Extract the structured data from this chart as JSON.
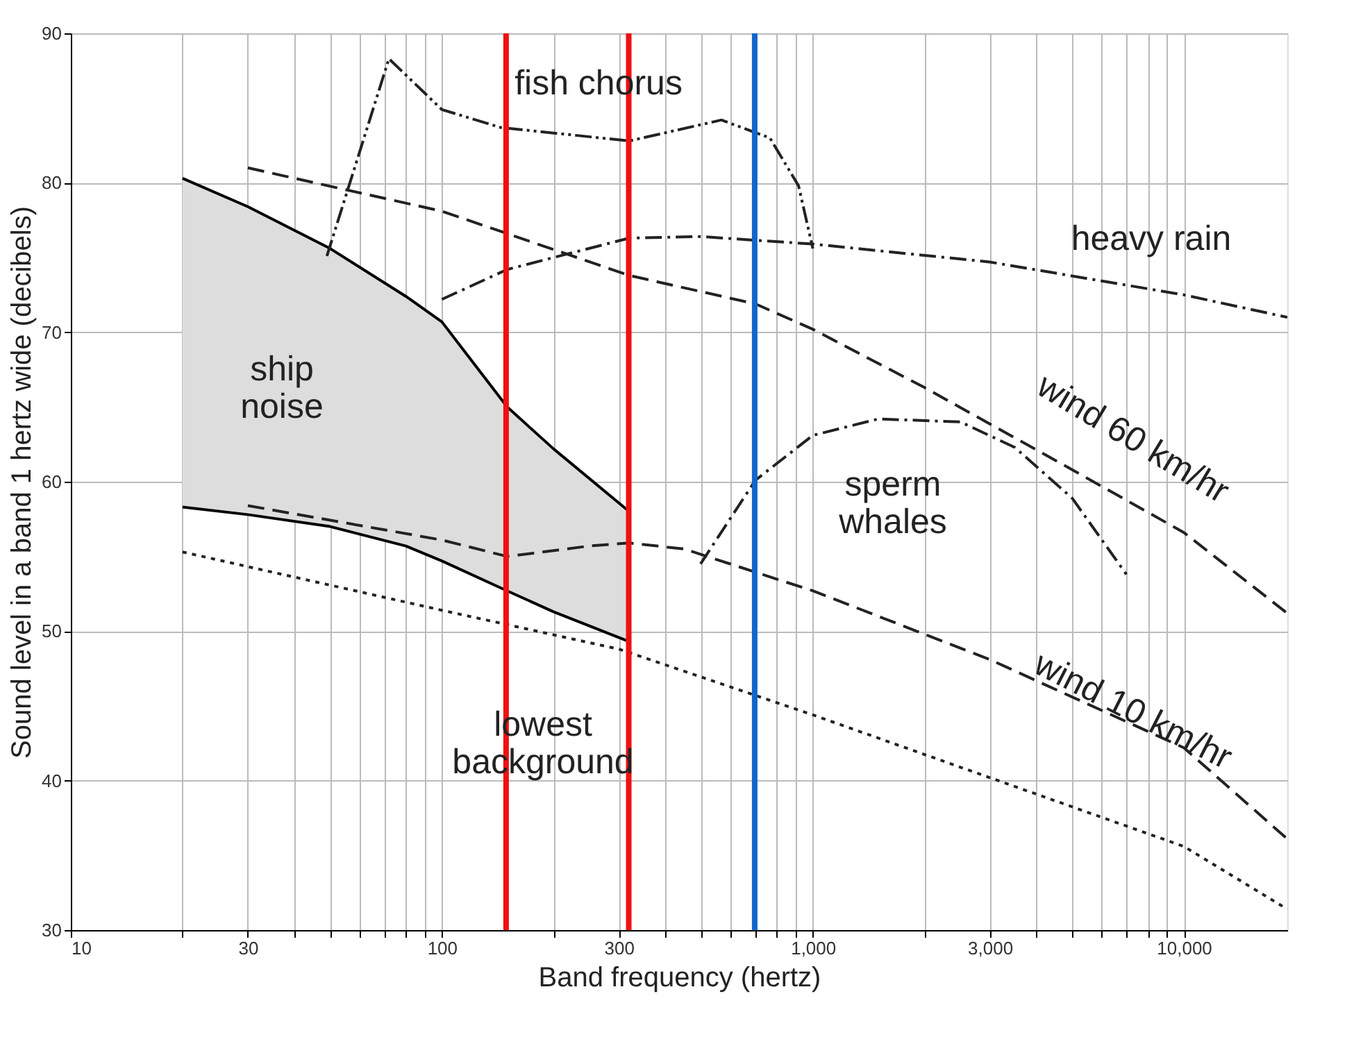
{
  "chart_data": {
    "type": "line",
    "xlabel": "Band frequency (hertz)",
    "ylabel": "Sound level in a band 1 hertz wide (decibels)",
    "log": "x",
    "grid": true,
    "xlim": [
      10,
      19000
    ],
    "ylim": [
      30,
      90
    ],
    "xticks": [
      10,
      {
        "value": 20,
        "label": null
      },
      30,
      {
        "value": 40,
        "label": null
      },
      {
        "value": 50,
        "label": null
      },
      {
        "value": 60,
        "label": null
      },
      {
        "value": 70,
        "label": null
      },
      {
        "value": 80,
        "label": null
      },
      {
        "value": 90,
        "label": null
      },
      100,
      {
        "value": 200,
        "label": null
      },
      300,
      {
        "value": 400,
        "label": null
      },
      {
        "value": 500,
        "label": null
      },
      {
        "value": 600,
        "label": null
      },
      {
        "value": 700,
        "label": null
      },
      {
        "value": 800,
        "label": null
      },
      {
        "value": 900,
        "label": null
      },
      {
        "value": 1000,
        "label": "1,000"
      },
      {
        "value": 2000,
        "label": null
      },
      {
        "value": 3000,
        "label": "3,000"
      },
      {
        "value": 4000,
        "label": null
      },
      {
        "value": 5000,
        "label": null
      },
      {
        "value": 6000,
        "label": null
      },
      {
        "value": 7000,
        "label": null
      },
      {
        "value": 8000,
        "label": null
      },
      {
        "value": 9000,
        "label": null
      },
      {
        "value": 10000,
        "label": "10,000"
      }
    ],
    "yticks": [
      30,
      40,
      50,
      60,
      70,
      80,
      90
    ],
    "series": [
      {
        "name": "ship\nnoise",
        "type": "area",
        "color": "#dddddd",
        "x": [
          20,
          30,
          50,
          80,
          100,
          150,
          200,
          320
        ],
        "values": [
          80.3,
          78.4,
          75.6,
          72.4,
          70.7,
          65,
          62.2,
          58
        ]
      },
      {
        "color": "#000000",
        "line_style": "solid",
        "x": [
          20,
          30,
          50,
          80,
          100,
          150,
          200,
          320
        ],
        "values": [
          58.3,
          57.8,
          57,
          55.7,
          54.7,
          52.7,
          51.3,
          49.3
        ]
      },
      {
        "name": "fish chorus",
        "color": "#222222",
        "line_style": "dashdotdot",
        "x": [
          49,
          72,
          100,
          144,
          320,
          567,
          766,
          915,
          1000
        ],
        "values": [
          75.1,
          88.3,
          84.9,
          83.7,
          82.8,
          84.2,
          83,
          79.8,
          75.6
        ]
      },
      {
        "name": "heavy rain",
        "color": "#222222",
        "line_style": "dashdot",
        "x": [
          100,
          150,
          320,
          500,
          1000,
          3000,
          10000,
          19000
        ],
        "values": [
          72.2,
          74.2,
          76.3,
          76.4,
          75.9,
          74.7,
          72.5,
          71
        ]
      },
      {
        "name": "wind 60 km/hr",
        "color": "#222222",
        "line_style": "dashed",
        "x": [
          30,
          100,
          320,
          700,
          1000,
          2000,
          5000,
          10000,
          19000
        ],
        "values": [
          81,
          78.1,
          73.8,
          71.9,
          70.2,
          66.3,
          60.8,
          56.6,
          51.2
        ]
      },
      {
        "name": "sperm\nwhales",
        "color": "#222222",
        "line_style": "dashdot",
        "x": [
          498,
          700,
          1000,
          1500,
          2500,
          3500,
          5000,
          7000
        ],
        "values": [
          54.5,
          60.1,
          63.1,
          64.2,
          64,
          62.3,
          58.9,
          53.8
        ]
      },
      {
        "name": "wind 10 km/hr",
        "color": "#222222",
        "line_style": "dashed",
        "x": [
          30,
          100,
          150,
          250,
          320,
          450,
          1000,
          3000,
          10000,
          19000
        ],
        "values": [
          58.4,
          56.1,
          55,
          55.7,
          55.9,
          55.5,
          52.7,
          48.1,
          42.2,
          36.1
        ]
      },
      {
        "name": "lowest\nbackground",
        "color": "#222222",
        "line_style": "dotted",
        "x": [
          20,
          100,
          300,
          1000,
          3000,
          10000,
          19000
        ],
        "values": [
          55.3,
          51.4,
          48.8,
          44.4,
          40.2,
          35.6,
          31.4
        ]
      }
    ],
    "ref_lines": [
      {
        "axis": "x",
        "value": 149,
        "color": "#ee1111"
      },
      {
        "axis": "x",
        "value": 319,
        "color": "#ee1111"
      },
      {
        "axis": "x",
        "value": 697,
        "color": "#1166cc"
      }
    ]
  }
}
